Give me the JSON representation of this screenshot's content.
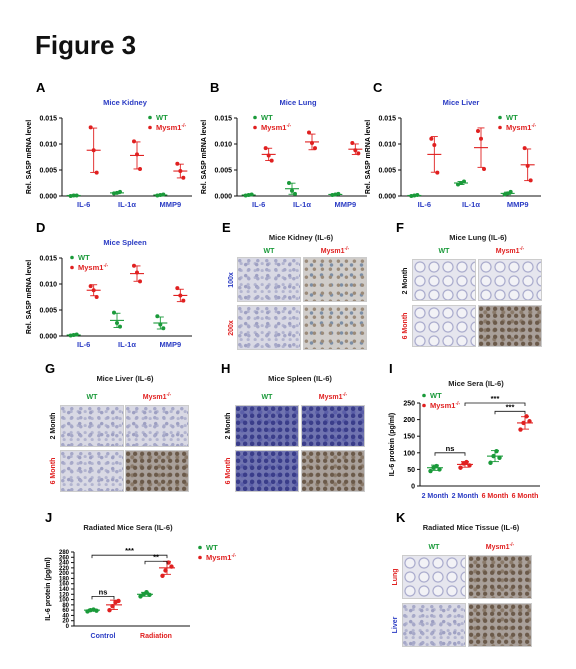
{
  "figure_title": "Figure 3",
  "legend": {
    "wt": "WT",
    "ko": "Mysm1",
    "ko_sup": "-/-"
  },
  "colors": {
    "wt": "#1a9a3a",
    "ko": "#e02020",
    "title_blue": "#2b3cc4",
    "axis": "#111111"
  },
  "panels": {
    "A": {
      "letter": "A",
      "title": "Mice Kidney",
      "ylabel": "Rel. SASP mRNA level"
    },
    "B": {
      "letter": "B",
      "title": "Mice Lung",
      "ylabel": "Rel. SASP mRNA level"
    },
    "C": {
      "letter": "C",
      "title": "Mice Liver",
      "ylabel": "Rel. SASP mRNA level"
    },
    "D": {
      "letter": "D",
      "title": "Mice Spleen",
      "ylabel": "Rel. SASP mRNA level"
    },
    "E": {
      "letter": "E",
      "title": "Mice Kidney (IL-6)",
      "col1": "WT",
      "col2": "Mysm1",
      "row1": "100x",
      "row2": "200x"
    },
    "F": {
      "letter": "F",
      "title": "Mice Lung (IL-6)",
      "col1": "WT",
      "col2": "Mysm1",
      "row1": "2 Month",
      "row2": "6 Month"
    },
    "G": {
      "letter": "G",
      "title": "Mice Liver (IL-6)",
      "col1": "WT",
      "col2": "Mysm1",
      "row1": "2 Month",
      "row2": "6 Month"
    },
    "H": {
      "letter": "H",
      "title": "Mice Spleen (IL-6)",
      "col1": "WT",
      "col2": "Mysm1",
      "row1": "2 Month",
      "row2": "6 Month"
    },
    "I": {
      "letter": "I",
      "title": "Mice Sera (IL-6)",
      "ylabel": "IL-6 protein (pg/ml)"
    },
    "J": {
      "letter": "J",
      "title": "Radiated Mice Sera (IL-6)",
      "ylabel": "IL-6 protein (pg/ml)"
    },
    "K": {
      "letter": "K",
      "title": "Radiated Mice Tissue (IL-6)",
      "col1": "WT",
      "col2": "Mysm1",
      "row1": "Lung",
      "row2": "Liver"
    }
  },
  "chart_data": [
    {
      "panel": "A",
      "type": "scatter",
      "title": "Mice Kidney",
      "ylabel": "Rel. SASP mRNA level",
      "ylim": [
        0,
        0.015
      ],
      "yticks": [
        "0.000",
        "0.005",
        "0.010",
        "0.015"
      ],
      "categories": [
        "IL-6",
        "IL-1α",
        "MMP9"
      ],
      "series": [
        {
          "name": "WT",
          "means": [
            0.0001,
            0.0006,
            0.0002
          ],
          "points": [
            [
              0,
              0.0001,
              0.0001
            ],
            [
              0.0005,
              0.0006,
              0.0008
            ],
            [
              0.0001,
              0.0002,
              0.0003
            ]
          ]
        },
        {
          "name": "Mysm1-/-",
          "means": [
            0.0088,
            0.0078,
            0.0048
          ],
          "points": [
            [
              0.0132,
              0.0088,
              0.0045
            ],
            [
              0.0105,
              0.008,
              0.0052
            ],
            [
              0.0062,
              0.0048,
              0.0035
            ]
          ]
        }
      ]
    },
    {
      "panel": "B",
      "type": "scatter",
      "title": "Mice Lung",
      "ylabel": "Rel. SASP mRNA level",
      "ylim": [
        0,
        0.015
      ],
      "yticks": [
        "0.000",
        "0.005",
        "0.010",
        "0.015"
      ],
      "categories": [
        "IL-6",
        "IL-1α",
        "MMP9"
      ],
      "series": [
        {
          "name": "WT",
          "means": [
            0.0002,
            0.0014,
            0.0003
          ],
          "points": [
            [
              0.0001,
              0.0002,
              0.0003
            ],
            [
              0.0025,
              0.001,
              0.0004
            ],
            [
              0.0002,
              0.0003,
              0.0004
            ]
          ]
        },
        {
          "name": "Mysm1-/-",
          "means": [
            0.008,
            0.0104,
            0.009
          ],
          "points": [
            [
              0.0092,
              0.0078,
              0.0068
            ],
            [
              0.0122,
              0.0102,
              0.0092
            ],
            [
              0.0102,
              0.0088,
              0.0082
            ]
          ]
        }
      ]
    },
    {
      "panel": "C",
      "type": "scatter",
      "title": "Mice Liver",
      "ylabel": "Rel. SASP mRNA level",
      "ylim": [
        0,
        0.015
      ],
      "yticks": [
        "0.000",
        "0.005",
        "0.010",
        "0.015"
      ],
      "categories": [
        "IL-6",
        "IL-1α",
        "MMP9"
      ],
      "series": [
        {
          "name": "WT",
          "means": [
            0.0001,
            0.0025,
            0.0005
          ],
          "points": [
            [
              0,
              0.0001,
              0.0002
            ],
            [
              0.0022,
              0.0025,
              0.0028
            ],
            [
              0.0003,
              0.0005,
              0.0008
            ]
          ]
        },
        {
          "name": "Mysm1-/-",
          "means": [
            0.008,
            0.0093,
            0.006
          ],
          "points": [
            [
              0.011,
              0.0098,
              0.0045
            ],
            [
              0.0125,
              0.011,
              0.0052
            ],
            [
              0.0092,
              0.0058,
              0.003
            ]
          ]
        }
      ]
    },
    {
      "panel": "D",
      "type": "scatter",
      "title": "Mice Spleen",
      "ylabel": "Rel. SASP mRNA level",
      "ylim": [
        0,
        0.015
      ],
      "yticks": [
        "0.000",
        "0.005",
        "0.010",
        "0.015"
      ],
      "categories": [
        "IL-6",
        "IL-1α",
        "MMP9"
      ],
      "series": [
        {
          "name": "WT",
          "means": [
            0.0002,
            0.003,
            0.0025
          ],
          "points": [
            [
              0.0001,
              0.0002,
              0.0003
            ],
            [
              0.0045,
              0.0025,
              0.0018
            ],
            [
              0.0038,
              0.0022,
              0.0015
            ]
          ]
        },
        {
          "name": "Mysm1-/-",
          "means": [
            0.0088,
            0.012,
            0.0078
          ],
          "points": [
            [
              0.0096,
              0.0088,
              0.0075
            ],
            [
              0.0135,
              0.0122,
              0.0105
            ],
            [
              0.0092,
              0.0078,
              0.0068
            ]
          ]
        }
      ]
    },
    {
      "panel": "I",
      "type": "scatter",
      "title": "Mice Sera (IL-6)",
      "ylabel": "IL-6 protein (pg/ml)",
      "ylim": [
        0,
        250
      ],
      "yticks": [
        "0",
        "50",
        "100",
        "150",
        "200",
        "250"
      ],
      "categories": [
        "2 Month",
        "2 Month",
        "6 Month",
        "6 Month"
      ],
      "category_colors": [
        "#2b3cc4",
        "#2b3cc4",
        "#e02020",
        "#e02020"
      ],
      "groups": [
        {
          "name": "WT",
          "mean": 55,
          "points": [
            45,
            55,
            60,
            50
          ]
        },
        {
          "name": "Mysm1-/-",
          "mean": 65,
          "points": [
            55,
            68,
            72,
            62
          ]
        },
        {
          "name": "WT",
          "mean": 90,
          "points": [
            70,
            90,
            105,
            85
          ]
        },
        {
          "name": "Mysm1-/-",
          "mean": 190,
          "points": [
            170,
            190,
            210,
            195
          ]
        }
      ],
      "annotations": [
        {
          "between": [
            0,
            1
          ],
          "text": "ns"
        },
        {
          "between": [
            2,
            3
          ],
          "text": "***"
        },
        {
          "between": [
            1,
            3
          ],
          "text": "***"
        }
      ]
    },
    {
      "panel": "J",
      "type": "scatter",
      "title": "Radiated Mice Sera (IL-6)",
      "ylabel": "IL-6 protein (pg/ml)",
      "ylim": [
        0,
        280
      ],
      "yticks": [
        "0",
        "20",
        "40",
        "60",
        "80",
        "100",
        "120",
        "140",
        "160",
        "180",
        "200",
        "220",
        "240",
        "260",
        "280"
      ],
      "categories": [
        "Control",
        "Radiation"
      ],
      "groups": [
        {
          "name": "WT",
          "mean": 60,
          "points": [
            55,
            60,
            62,
            58
          ]
        },
        {
          "name": "Mysm1-/-",
          "mean": 80,
          "points": [
            60,
            75,
            90,
            95
          ]
        },
        {
          "name": "WT",
          "mean": 120,
          "points": [
            112,
            120,
            128,
            118
          ]
        },
        {
          "name": "Mysm1-/-",
          "mean": 220,
          "points": [
            190,
            210,
            240,
            225
          ]
        }
      ],
      "annotations": [
        {
          "between": [
            0,
            1
          ],
          "text": "ns"
        },
        {
          "between": [
            2,
            3
          ],
          "text": "**"
        },
        {
          "between": [
            0,
            3
          ],
          "text": "***"
        }
      ]
    }
  ]
}
